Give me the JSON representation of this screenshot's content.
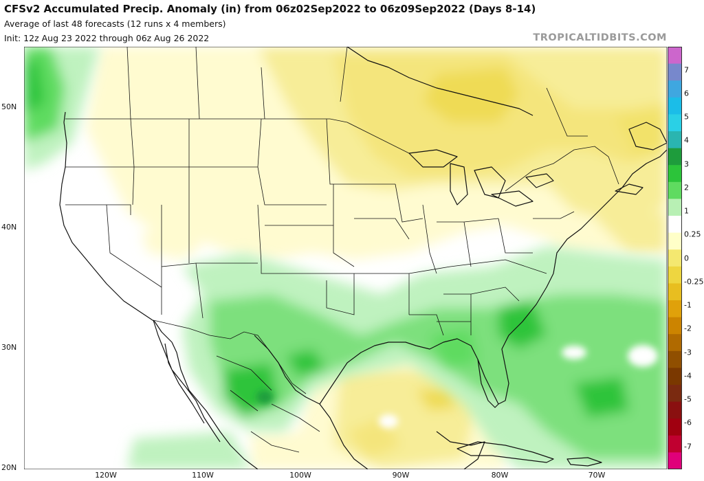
{
  "header": {
    "title": "CFSv2 Accumulated Precip. Anomaly (in) from 06z02Sep2022 to 06z09Sep2022 (Days 8-14)",
    "subtitle1": "Average of last 48 forecasts (12 runs x 4 members)",
    "subtitle2": "Init: 12z Aug 23 2022 through 06z Aug 26 2022",
    "brand": "TROPICALTIDBITS.COM"
  },
  "axes": {
    "lat_labels": [
      "50N",
      "40N",
      "30N",
      "20N"
    ],
    "lon_labels": [
      "120W",
      "110W",
      "100W",
      "90W",
      "80W",
      "70W"
    ]
  },
  "colorbar": {
    "labels": [
      "7",
      "6",
      "5",
      "4",
      "3",
      "2",
      "1",
      "0.25",
      "0",
      "-0.25",
      "-1",
      "-2",
      "-3",
      "-4",
      "-5",
      "-6",
      "-7"
    ],
    "colors": [
      "#cc66cc",
      "#7788cc",
      "#3fa7e0",
      "#1bbde8",
      "#2ad0e6",
      "#2ab5b0",
      "#1e9c3c",
      "#2cc43a",
      "#5fdb60",
      "#b8f0b4",
      "#ffffff",
      "#ffffc8",
      "#f4e870",
      "#eed640",
      "#e8be20",
      "#e0a10a",
      "#cc8400",
      "#b06a00",
      "#904f00",
      "#7a3800",
      "#7a2a10",
      "#8a1010",
      "#a00010",
      "#c00030",
      "#e0007a"
    ],
    "min": -7,
    "max": 7
  },
  "colors": {
    "wet_light": "#bff2bf",
    "wet": "#7de07d",
    "wet_strong": "#2ec43a",
    "dry_light": "#fffbd0",
    "dry": "#f7ed98",
    "dry_strong": "#efdb55",
    "land_outline": "#111111"
  }
}
